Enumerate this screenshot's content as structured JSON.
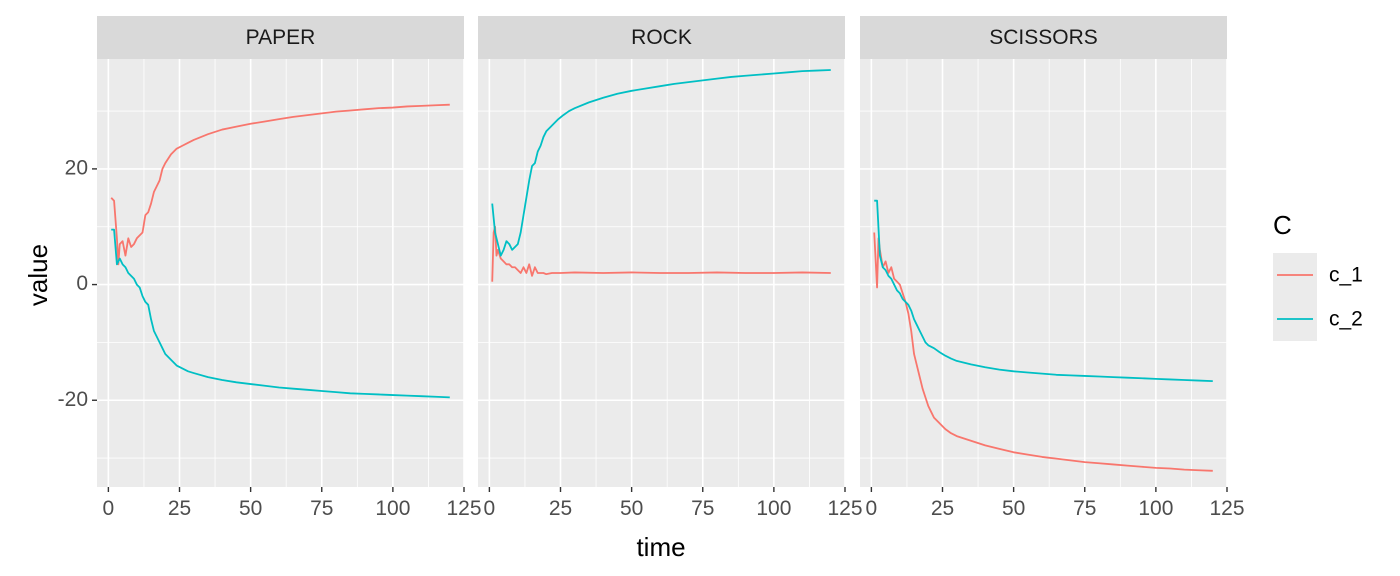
{
  "chart_data": {
    "type": "line",
    "xlabel": "time",
    "ylabel": "value",
    "xlim": [
      -4,
      125
    ],
    "ylim": [
      -35,
      39
    ],
    "x_ticks": [
      0,
      25,
      50,
      75,
      100,
      125
    ],
    "y_ticks": [
      -20,
      0,
      20
    ],
    "x_tick_labels": [
      "0",
      "25",
      "50",
      "75",
      "100",
      "125"
    ],
    "y_tick_labels": [
      "-20",
      "0",
      "20"
    ],
    "grid": true,
    "legend": {
      "title": "C",
      "position": "right",
      "entries": [
        {
          "name": "c_1",
          "color": "#F8766D"
        },
        {
          "name": "c_2",
          "color": "#00BFC4"
        }
      ]
    },
    "colors": {
      "panel_background": "#EBEBEB",
      "strip_background": "#D9D9D9",
      "grid": "#FFFFFF",
      "c_1": "#F8766D",
      "c_2": "#00BFC4"
    },
    "panels": [
      {
        "label": "PAPER",
        "series": [
          {
            "name": "c_1",
            "x": [
              1,
              2,
              3,
              3.5,
              4,
              5,
              6,
              7,
              8,
              9,
              10,
              11,
              12,
              13,
              14,
              15,
              16,
              17,
              18,
              19,
              20,
              22,
              24,
              26,
              28,
              30,
              35,
              40,
              45,
              50,
              55,
              60,
              65,
              70,
              75,
              80,
              85,
              90,
              95,
              100,
              105,
              110,
              115,
              120
            ],
            "y": [
              15,
              14.5,
              8,
              3.5,
              7,
              7.5,
              5,
              8,
              6.5,
              7,
              8,
              8.5,
              9,
              12,
              12.5,
              14,
              16,
              17,
              18,
              20,
              21,
              22.5,
              23.5,
              24,
              24.5,
              25,
              26,
              26.8,
              27.3,
              27.8,
              28.2,
              28.6,
              29,
              29.3,
              29.6,
              29.9,
              30.1,
              30.3,
              30.5,
              30.6,
              30.8,
              30.9,
              31,
              31.1
            ]
          },
          {
            "name": "c_2",
            "x": [
              1,
              2,
              3,
              4,
              5,
              6,
              7,
              8,
              9,
              10,
              11,
              12,
              13,
              14,
              15,
              16,
              17,
              18,
              19,
              20,
              22,
              24,
              26,
              28,
              30,
              35,
              40,
              45,
              50,
              55,
              60,
              65,
              70,
              75,
              80,
              85,
              90,
              95,
              100,
              105,
              110,
              115,
              120
            ],
            "y": [
              9.5,
              9.5,
              3.5,
              4.5,
              3.5,
              3,
              2,
              1.5,
              1,
              0,
              -0.5,
              -2,
              -3,
              -3.5,
              -6,
              -8,
              -9,
              -10,
              -11,
              -12,
              -13,
              -14,
              -14.5,
              -15,
              -15.3,
              -16,
              -16.5,
              -16.9,
              -17.2,
              -17.5,
              -17.8,
              -18,
              -18.2,
              -18.4,
              -18.6,
              -18.8,
              -18.9,
              -19,
              -19.1,
              -19.2,
              -19.3,
              -19.4,
              -19.5
            ]
          }
        ]
      },
      {
        "label": "ROCK",
        "series": [
          {
            "name": "c_1",
            "x": [
              1,
              1.5,
              2,
              2.5,
              3,
              4,
              5,
              6,
              7,
              8,
              9,
              10,
              11,
              12,
              13,
              14,
              15,
              16,
              17,
              18,
              19,
              20,
              22,
              25,
              30,
              40,
              50,
              60,
              70,
              80,
              90,
              100,
              110,
              120
            ],
            "y": [
              0.5,
              9,
              10,
              5,
              6,
              4.5,
              4,
              3.5,
              3.5,
              3,
              3,
              2.5,
              2,
              3,
              2,
              3.5,
              1.5,
              3,
              2,
              2,
              2,
              1.8,
              2,
              2,
              2.1,
              2,
              2.1,
              2,
              2,
              2.1,
              2,
              2,
              2.1,
              2
            ]
          },
          {
            "name": "c_2",
            "x": [
              1,
              2,
              3,
              4,
              5,
              6,
              7,
              8,
              9,
              10,
              11,
              12,
              13,
              14,
              15,
              16,
              17,
              18,
              19,
              20,
              22,
              24,
              26,
              28,
              30,
              35,
              40,
              45,
              50,
              55,
              60,
              65,
              70,
              75,
              80,
              85,
              90,
              95,
              100,
              105,
              110,
              115,
              120
            ],
            "y": [
              14,
              9,
              7,
              5,
              6,
              7.5,
              7,
              6,
              6.5,
              7,
              9,
              12,
              15,
              18,
              20.5,
              21,
              23,
              24,
              25.5,
              26.5,
              27.5,
              28.5,
              29.3,
              30,
              30.5,
              31.5,
              32.3,
              33,
              33.5,
              33.9,
              34.3,
              34.7,
              35,
              35.3,
              35.6,
              35.9,
              36.1,
              36.3,
              36.5,
              36.7,
              36.9,
              37,
              37.1
            ]
          }
        ]
      },
      {
        "label": "SCISSORS",
        "series": [
          {
            "name": "c_1",
            "x": [
              1,
              2,
              2.5,
              3,
              4,
              5,
              6,
              7,
              8,
              9,
              10,
              11,
              12,
              13,
              14,
              15,
              16,
              17,
              18,
              19,
              20,
              21,
              22,
              24,
              26,
              28,
              30,
              35,
              40,
              45,
              50,
              55,
              60,
              65,
              70,
              75,
              80,
              85,
              90,
              95,
              100,
              105,
              110,
              115,
              120
            ],
            "y": [
              9,
              -0.5,
              8,
              6,
              3,
              4,
              2,
              3,
              1,
              0.5,
              0,
              -1.5,
              -3,
              -5,
              -8,
              -12,
              -14,
              -16,
              -18,
              -19.5,
              -21,
              -22,
              -23,
              -24,
              -25,
              -25.7,
              -26.2,
              -27,
              -27.8,
              -28.4,
              -29,
              -29.4,
              -29.8,
              -30.1,
              -30.4,
              -30.7,
              -30.9,
              -31.1,
              -31.3,
              -31.5,
              -31.7,
              -31.8,
              -32,
              -32.1,
              -32.2
            ]
          },
          {
            "name": "c_2",
            "x": [
              1,
              2,
              3,
              4,
              5,
              6,
              7,
              8,
              9,
              10,
              11,
              12,
              13,
              14,
              15,
              16,
              17,
              18,
              19,
              20,
              22,
              24,
              26,
              28,
              30,
              35,
              40,
              45,
              50,
              55,
              60,
              65,
              70,
              75,
              80,
              85,
              90,
              95,
              100,
              105,
              110,
              115,
              120
            ],
            "y": [
              14.5,
              14.5,
              5,
              3,
              2.5,
              1.5,
              1,
              0,
              -1,
              -1.5,
              -2.5,
              -3,
              -3.5,
              -4.5,
              -6,
              -7,
              -8,
              -9,
              -10,
              -10.5,
              -11,
              -11.7,
              -12.3,
              -12.8,
              -13.2,
              -13.8,
              -14.3,
              -14.7,
              -15,
              -15.2,
              -15.4,
              -15.6,
              -15.7,
              -15.8,
              -15.9,
              -16,
              -16.1,
              -16.2,
              -16.3,
              -16.4,
              -16.5,
              -16.6,
              -16.7
            ]
          }
        ]
      }
    ]
  }
}
